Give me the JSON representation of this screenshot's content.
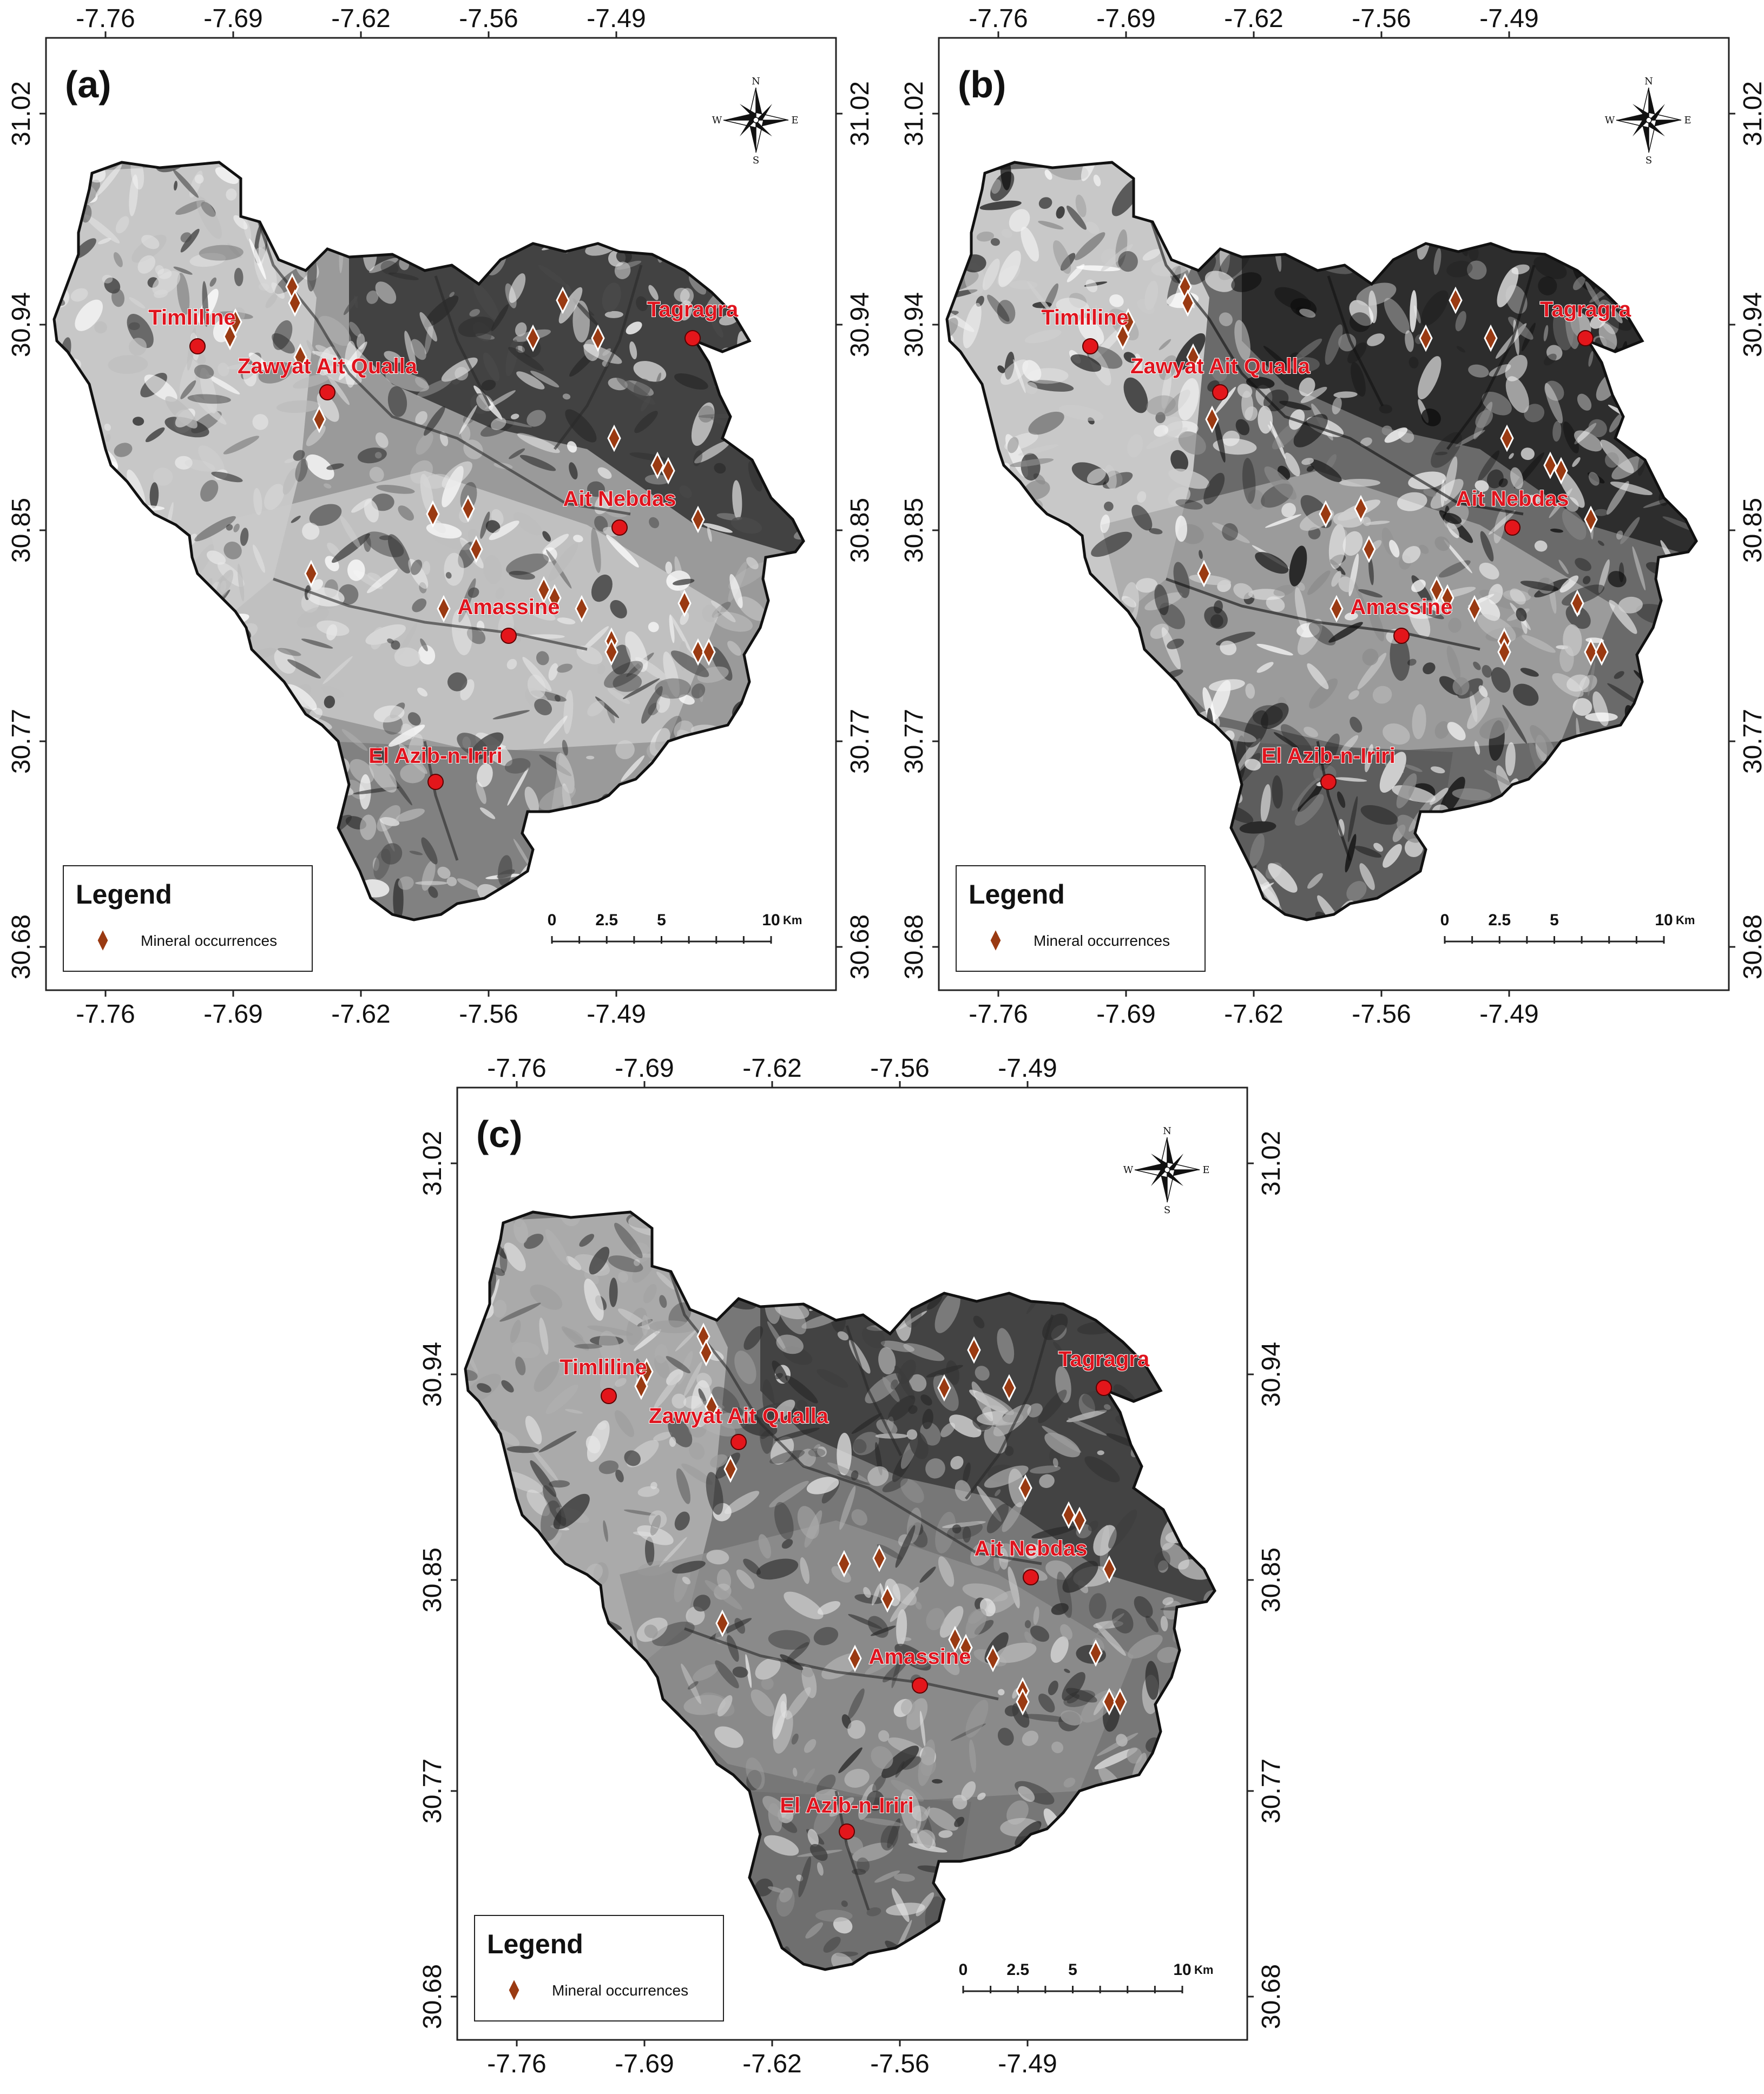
{
  "axes": {
    "lon_ticks": [
      "-7.76",
      "-7.69",
      "-7.62",
      "-7.56",
      "-7.49"
    ],
    "lat_ticks": [
      "31.02",
      "30.94",
      "30.85",
      "30.77",
      "30.68"
    ]
  },
  "panels": [
    {
      "label": "(a)",
      "style": "a"
    },
    {
      "label": "(b)",
      "style": "b"
    },
    {
      "label": "(c)",
      "style": "c"
    }
  ],
  "towns": [
    "Timliline",
    "Zawyat Ait Qualla",
    "Tagragra",
    "Ait Nebdas",
    "Amassine",
    "El Azib-n-Iriri"
  ],
  "legend": {
    "title": "Legend",
    "item": "Mineral occurrences",
    "marker_color": "#9a3a12"
  },
  "scale_bar": {
    "labels": [
      "0",
      "2.5",
      "5",
      "10"
    ],
    "unit": "Km"
  },
  "north_arrow": {
    "N": "N",
    "S": "S",
    "E": "E",
    "W": "W"
  },
  "colors": {
    "town_marker": "#e3161b",
    "town_label": "#e0141e",
    "mineral_marker": "#9a3a12"
  }
}
